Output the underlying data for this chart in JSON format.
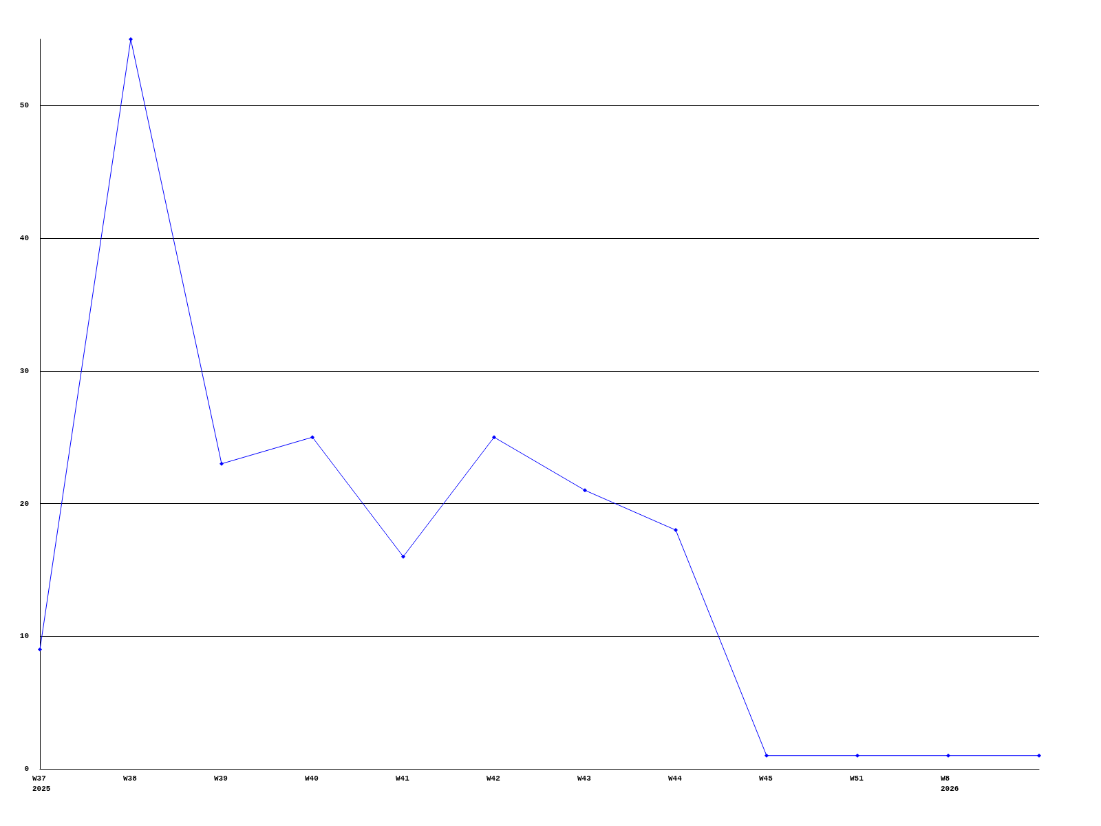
{
  "chart_data": {
    "type": "line",
    "categories": [
      "W37\n2025",
      "W38",
      "W39",
      "W40",
      "W41",
      "W42",
      "W43",
      "W44",
      "W45",
      "W51",
      "W8\n2026",
      null
    ],
    "series": [
      {
        "color": "#0000ff",
        "values": [
          9,
          55,
          23,
          25,
          16,
          25,
          21,
          18,
          1,
          1,
          1,
          1
        ]
      }
    ],
    "ylim": [
      0,
      55
    ],
    "yticks": [
      0,
      10,
      20,
      30,
      40,
      50
    ],
    "grid": "y",
    "marker": "diamond",
    "line_style": "solid"
  }
}
